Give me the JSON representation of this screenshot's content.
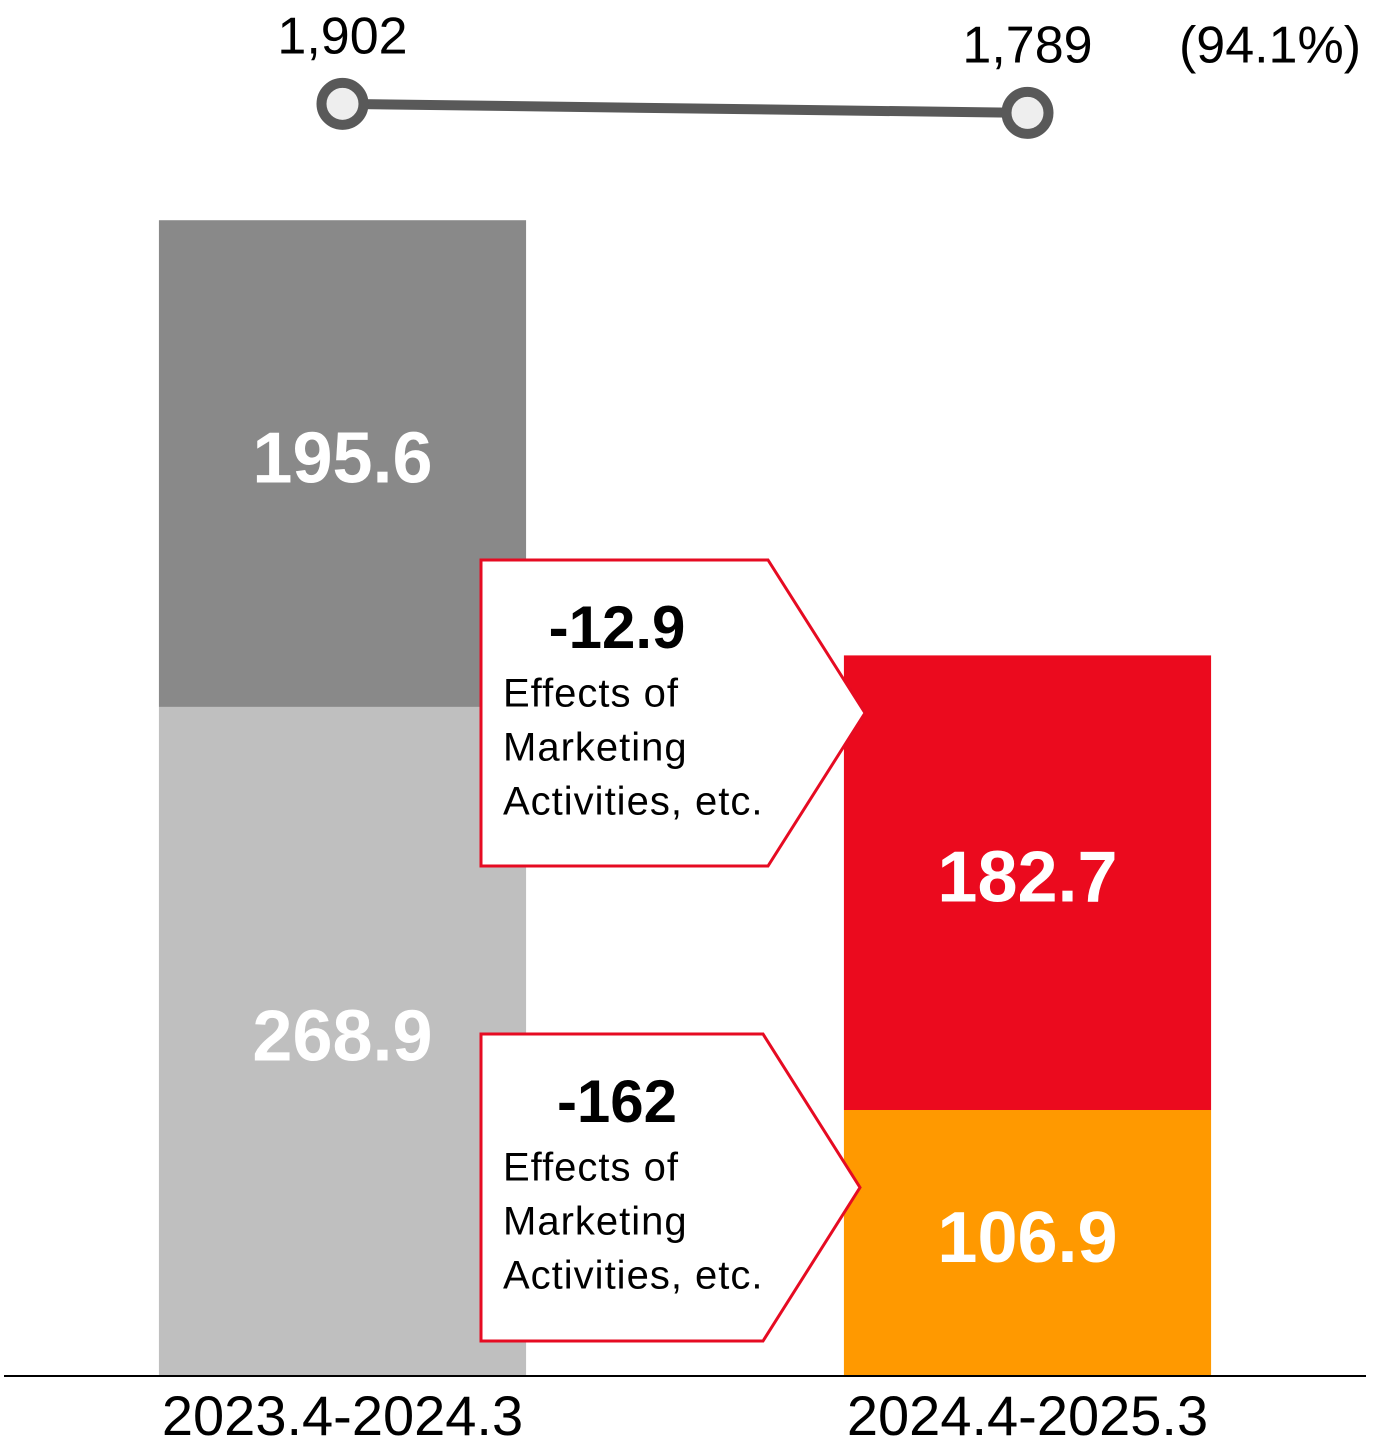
{
  "chart_data": {
    "type": "bar",
    "stacked": true,
    "categories": [
      "2023.4-2024.3",
      "2024.4-2025.3"
    ],
    "series": [
      {
        "values": [
          268.9,
          106.9
        ],
        "colors": [
          "#bfbfbf",
          "#ff9900"
        ]
      },
      {
        "values": [
          195.6,
          182.7
        ],
        "colors": [
          "#898989",
          "#eb0a1e"
        ]
      },
      {
        "type": "line",
        "axis": "y2",
        "color": "#595959",
        "values": [
          1902,
          1789
        ],
        "value_labels": [
          "1,902",
          "1,789"
        ]
      }
    ],
    "ratio_label": "(94.1%)",
    "ylim": [
      0,
      553
    ],
    "y2lim": [
      700,
      3200
    ],
    "annotations": [
      {
        "value": -12.9,
        "lines": [
          "Effects of",
          "Marketing",
          "Activities, etc."
        ]
      },
      {
        "value": -162.0,
        "lines": [
          "Effects of",
          "Marketing",
          "Activities, etc."
        ]
      }
    ],
    "grid": false
  }
}
